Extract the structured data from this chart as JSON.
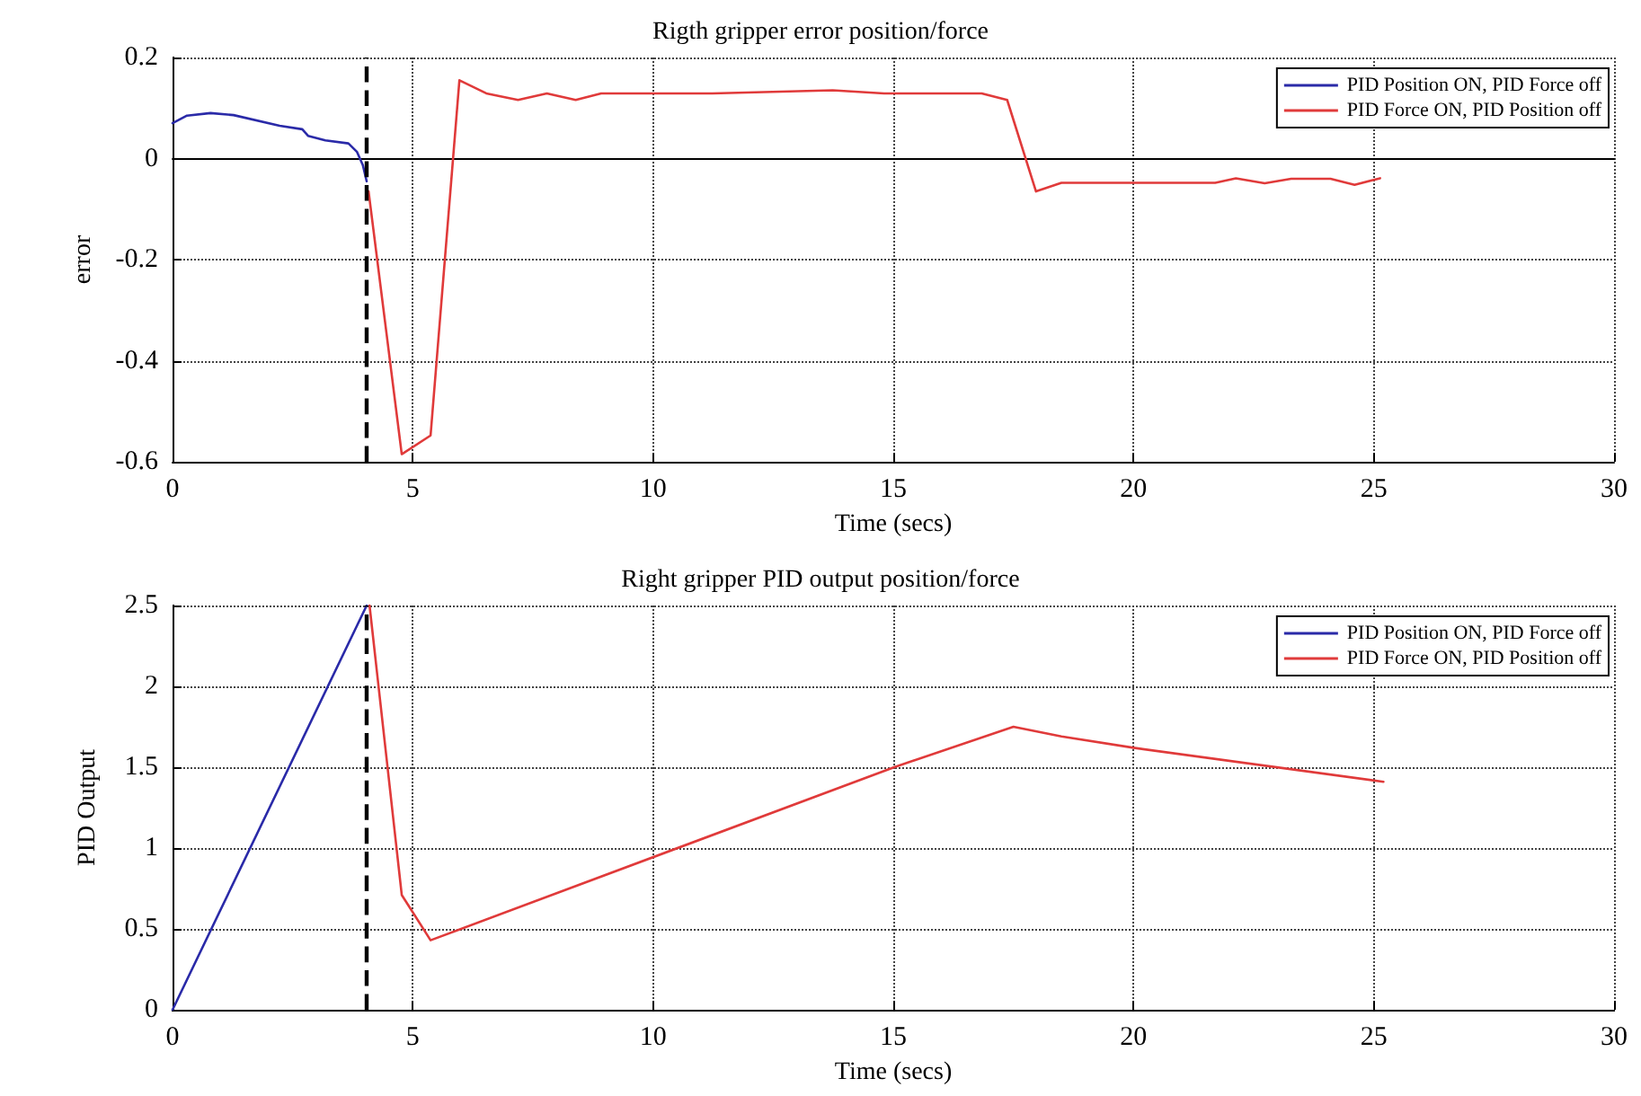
{
  "chart_data": [
    {
      "type": "line",
      "title": "Rigth gripper error position/force",
      "xlabel": "Time (secs)",
      "ylabel": "error",
      "xlim": [
        0,
        30
      ],
      "xticks": [
        0,
        5,
        10,
        15,
        20,
        25,
        30
      ],
      "ylim": [
        -0.6,
        0.2
      ],
      "yticks": [
        -0.6,
        -0.4,
        -0.2,
        0,
        0.2
      ],
      "grid": true,
      "legend": "top right",
      "series": [
        {
          "name": "PID Position ON, PID Force off",
          "color": "#2a2aa8",
          "x": [
            0,
            0.3,
            0.79,
            1.27,
            2.23,
            2.7,
            2.82,
            3.18,
            3.66,
            3.84,
            3.96,
            4.04
          ],
          "values": [
            0.07,
            0.085,
            0.09,
            0.086,
            0.065,
            0.058,
            0.045,
            0.036,
            0.03,
            0.013,
            -0.013,
            -0.045
          ]
        },
        {
          "name": "PID Force ON, PID Position off",
          "color": "#e03a3a",
          "x": [
            4.08,
            4.77,
            5.37,
            5.97,
            6.53,
            7.19,
            7.79,
            8.39,
            8.92,
            11.23,
            13.74,
            14.81,
            16.84,
            17.37,
            17.97,
            18.5,
            21.7,
            22.13,
            22.73,
            23.28,
            24.1,
            24.6,
            25.13
          ],
          "values": [
            -0.065,
            -0.585,
            -0.548,
            0.155,
            0.129,
            0.116,
            0.129,
            0.116,
            0.129,
            0.129,
            0.135,
            0.129,
            0.129,
            0.116,
            -0.065,
            -0.048,
            -0.048,
            -0.039,
            -0.049,
            -0.04,
            -0.04,
            -0.052,
            -0.039
          ]
        }
      ],
      "ref_lines": [
        {
          "axis": "x",
          "value": 4.04,
          "color": "#000000",
          "line_style": "dashed"
        }
      ]
    },
    {
      "type": "line",
      "title": "Right gripper PID output position/force",
      "xlabel": "Time (secs)",
      "ylabel": "PID Output",
      "xlim": [
        0,
        30
      ],
      "xticks": [
        0,
        5,
        10,
        15,
        20,
        25,
        30
      ],
      "ylim": [
        0,
        2.5
      ],
      "yticks": [
        0,
        0.5,
        1,
        1.5,
        2,
        2.5
      ],
      "grid": true,
      "legend": "top right",
      "series": [
        {
          "name": "PID Position ON, PID Force off",
          "color": "#2a2aa8",
          "x": [
            0,
            4.04
          ],
          "values": [
            0,
            2.5
          ]
        },
        {
          "name": "PID Force ON, PID Position off",
          "color": "#e03a3a",
          "x": [
            4.1,
            4.77,
            5.37,
            15.02,
            17.5,
            18.5,
            20,
            25.2
          ],
          "values": [
            2.5,
            0.71,
            0.43,
            1.5,
            1.75,
            1.69,
            1.62,
            1.41
          ]
        }
      ],
      "ref_lines": [
        {
          "axis": "x",
          "value": 4.04,
          "color": "#000000",
          "line_style": "dashed"
        }
      ]
    }
  ]
}
